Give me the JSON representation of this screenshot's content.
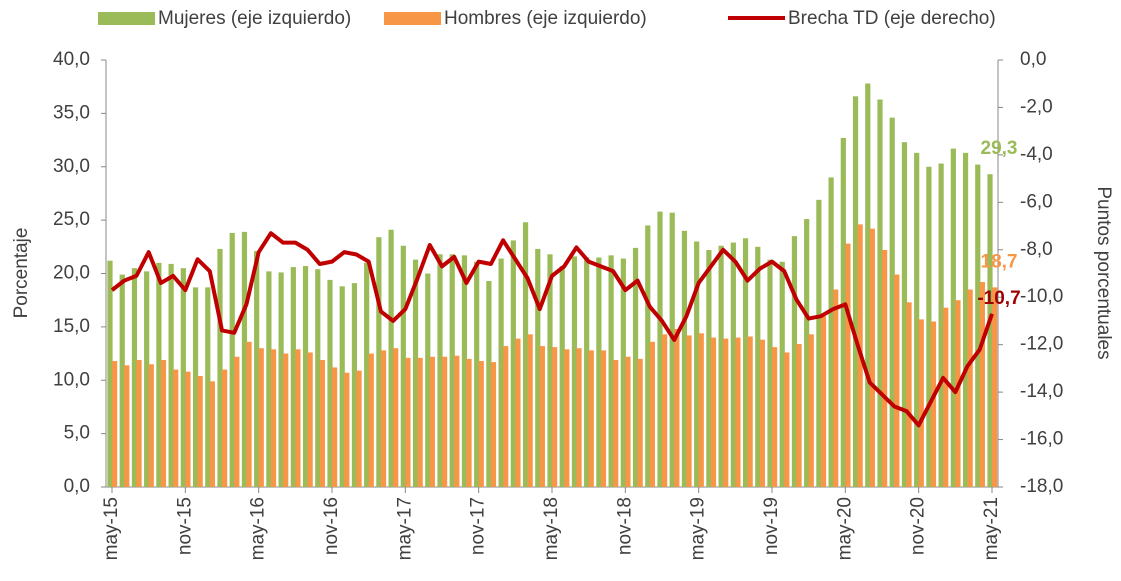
{
  "chart_data": {
    "type": "bar_line",
    "y_label": "Porcentaje",
    "y2_label": "Puntos porcentuales",
    "categories": [
      "may-15",
      null,
      null,
      null,
      null,
      null,
      "nov-15",
      null,
      null,
      null,
      null,
      null,
      "may-16",
      null,
      null,
      null,
      null,
      null,
      "nov-16",
      null,
      null,
      null,
      null,
      null,
      "may-17",
      null,
      null,
      null,
      null,
      null,
      "nov-17",
      null,
      null,
      null,
      null,
      null,
      "may-18",
      null,
      null,
      null,
      null,
      null,
      "nov-18",
      null,
      null,
      null,
      null,
      null,
      "may-19",
      null,
      null,
      null,
      null,
      null,
      "nov-19",
      null,
      null,
      null,
      null,
      null,
      "may-20",
      null,
      null,
      null,
      null,
      null,
      "nov-20",
      null,
      null,
      null,
      null,
      null,
      "may-21"
    ],
    "series": [
      {
        "name": "Mujeres (eje izquierdo)",
        "type": "bar",
        "color": "#9bbb59",
        "values": [
          21.2,
          19.9,
          20.5,
          20.2,
          21.0,
          20.9,
          20.5,
          18.7,
          18.7,
          22.3,
          23.8,
          23.9,
          22.1,
          20.2,
          20.1,
          20.6,
          20.7,
          20.4,
          19.4,
          18.8,
          19.1,
          21.0,
          23.4,
          24.1,
          22.6,
          21.3,
          20.0,
          21.8,
          21.8,
          21.7,
          21.1,
          19.3,
          21.4,
          23.1,
          24.8,
          22.3,
          21.8,
          20.7,
          21.6,
          21.5,
          21.5,
          21.7,
          21.4,
          22.4,
          24.5,
          25.8,
          25.7,
          24.0,
          23.0,
          22.2,
          22.6,
          22.9,
          23.3,
          22.5,
          21.3,
          21.1,
          23.5,
          25.1,
          26.9,
          29.0,
          32.7,
          36.6,
          37.8,
          36.3,
          34.6,
          32.3,
          31.3,
          30.0,
          30.3,
          31.7,
          31.3,
          30.2,
          29.3
        ],
        "value_labels": [
          null,
          null,
          null,
          null,
          null,
          null,
          null,
          null,
          null,
          null,
          null,
          null,
          null,
          null,
          null,
          null,
          null,
          null,
          null,
          null,
          null,
          null,
          null,
          null,
          null,
          null,
          null,
          null,
          null,
          null,
          null,
          null,
          null,
          null,
          null,
          null,
          null,
          null,
          null,
          null,
          null,
          null,
          null,
          null,
          null,
          null,
          null,
          null,
          null,
          null,
          null,
          null,
          null,
          null,
          null,
          null,
          null,
          null,
          null,
          null,
          null,
          null,
          null,
          null,
          null,
          null,
          null,
          null,
          null,
          null,
          null,
          null,
          "29,3"
        ]
      },
      {
        "name": "Hombres (eje izquierdo)",
        "type": "bar",
        "color": "#f79646",
        "values": [
          11.8,
          11.4,
          11.9,
          11.5,
          11.9,
          11.0,
          10.8,
          10.4,
          9.9,
          11.0,
          12.2,
          13.6,
          13.0,
          12.9,
          12.5,
          12.9,
          12.6,
          11.9,
          11.2,
          10.7,
          10.9,
          12.5,
          12.8,
          13.0,
          12.1,
          12.1,
          12.2,
          12.2,
          12.3,
          12.0,
          11.8,
          11.7,
          13.2,
          13.9,
          14.3,
          13.2,
          13.1,
          12.9,
          13.0,
          12.8,
          12.8,
          11.9,
          12.2,
          12.0,
          13.6,
          14.3,
          14.8,
          14.2,
          14.4,
          14.0,
          13.9,
          14.0,
          14.1,
          13.8,
          13.1,
          12.6,
          13.4,
          14.3,
          16.0,
          18.5,
          22.8,
          24.6,
          24.2,
          22.2,
          19.9,
          17.3,
          15.7,
          15.5,
          16.8,
          17.5,
          18.5,
          19.2,
          18.7
        ],
        "value_labels": [
          null,
          null,
          null,
          null,
          null,
          null,
          null,
          null,
          null,
          null,
          null,
          null,
          null,
          null,
          null,
          null,
          null,
          null,
          null,
          null,
          null,
          null,
          null,
          null,
          null,
          null,
          null,
          null,
          null,
          null,
          null,
          null,
          null,
          null,
          null,
          null,
          null,
          null,
          null,
          null,
          null,
          null,
          null,
          null,
          null,
          null,
          null,
          null,
          null,
          null,
          null,
          null,
          null,
          null,
          null,
          null,
          null,
          null,
          null,
          null,
          null,
          null,
          null,
          null,
          null,
          null,
          null,
          null,
          null,
          null,
          null,
          null,
          "18,7"
        ]
      },
      {
        "name": "Brecha TD (eje derecho)",
        "type": "line",
        "axis": "y2",
        "color": "#c00000",
        "values": [
          -9.7,
          -9.3,
          -9.1,
          -8.1,
          -9.4,
          -9.1,
          -9.7,
          -8.4,
          -8.9,
          -11.4,
          -11.5,
          -10.3,
          -8.1,
          -7.3,
          -7.7,
          -7.7,
          -8.0,
          -8.6,
          -8.5,
          -8.1,
          -8.2,
          -8.5,
          -10.6,
          -11.0,
          -10.5,
          -9.2,
          -7.8,
          -8.7,
          -8.3,
          -9.4,
          -8.5,
          -8.6,
          -7.6,
          -8.4,
          -9.2,
          -10.5,
          -9.1,
          -8.7,
          -7.9,
          -8.5,
          -8.7,
          -8.9,
          -9.7,
          -9.3,
          -10.4,
          -11.0,
          -11.8,
          -10.8,
          -9.4,
          -8.7,
          -8.0,
          -8.5,
          -9.3,
          -8.8,
          -8.5,
          -8.9,
          -10.1,
          -10.9,
          -10.8,
          -10.5,
          -10.3,
          -12.0,
          -13.6,
          -14.1,
          -14.6,
          -14.8,
          -15.4,
          -14.4,
          -13.4,
          -14.0,
          -12.9,
          -12.2,
          -10.7
        ],
        "value_labels": [
          null,
          null,
          null,
          null,
          null,
          null,
          null,
          null,
          null,
          null,
          null,
          null,
          null,
          null,
          null,
          null,
          null,
          null,
          null,
          null,
          null,
          null,
          null,
          null,
          null,
          null,
          null,
          null,
          null,
          null,
          null,
          null,
          null,
          null,
          null,
          null,
          null,
          null,
          null,
          null,
          null,
          null,
          null,
          null,
          null,
          null,
          null,
          null,
          null,
          null,
          null,
          null,
          null,
          null,
          null,
          null,
          null,
          null,
          null,
          null,
          null,
          null,
          null,
          null,
          null,
          null,
          null,
          null,
          null,
          null,
          null,
          null,
          "-10,7"
        ]
      }
    ],
    "ylim": [
      0,
      40
    ],
    "yticks": [
      {
        "value": 0,
        "label": "0,0"
      },
      {
        "value": 5,
        "label": "5,0"
      },
      {
        "value": 10,
        "label": "10,0"
      },
      {
        "value": 15,
        "label": "15,0"
      },
      {
        "value": 20,
        "label": "20,0"
      },
      {
        "value": 25,
        "label": "25,0"
      },
      {
        "value": 30,
        "label": "30,0"
      },
      {
        "value": 35,
        "label": "35,0"
      },
      {
        "value": 40,
        "label": "40,0"
      }
    ],
    "y2lim": [
      -18,
      0
    ],
    "y2ticks": [
      {
        "value": 0,
        "label": "0,0"
      },
      {
        "value": -2,
        "label": "-2,0"
      },
      {
        "value": -4,
        "label": "-4,0"
      },
      {
        "value": -6,
        "label": "-6,0"
      },
      {
        "value": -8,
        "label": "-8,0"
      },
      {
        "value": -10,
        "label": "-10,0"
      },
      {
        "value": -12,
        "label": "-12,0"
      },
      {
        "value": -14,
        "label": "-14,0"
      },
      {
        "value": -16,
        "label": "-16,0"
      },
      {
        "value": -18,
        "label": "-18,0"
      }
    ],
    "legend": "top",
    "grid": false
  }
}
